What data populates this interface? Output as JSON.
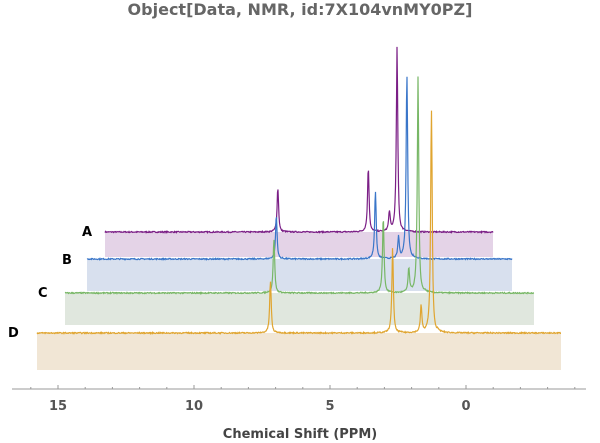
{
  "chart_data": {
    "type": "line",
    "title": "Object[Data, NMR, id:7X104vnMY0PZ]",
    "xlabel": "Chemical Shift  (PPM)",
    "ylabel": "",
    "xlim": [
      15.8,
      -3.5
    ],
    "x_reversed": true,
    "x_ticks": [
      "15",
      "10",
      "5",
      "0"
    ],
    "x_tick_values": [
      15,
      10,
      5,
      0
    ],
    "stacked_3d": true,
    "peak_ppm": [
      7.2,
      2.7,
      1.65,
      1.27
    ],
    "series": [
      {
        "name": "A",
        "color": "#7b1f86",
        "fill": "#e4d3e7",
        "peak_heights": [
          47,
          68,
          21,
          187
        ]
      },
      {
        "name": "B",
        "color": "#3a76c9",
        "fill": "#d8e0ee",
        "peak_heights": [
          46,
          73,
          22,
          198
        ]
      },
      {
        "name": "C",
        "color": "#78b766",
        "fill": "#e0e7de",
        "peak_heights": [
          58,
          80,
          25,
          218
        ]
      },
      {
        "name": "D",
        "color": "#e0a530",
        "fill": "#f1e6d5",
        "peak_heights": [
          56,
          88,
          28,
          241
        ]
      }
    ]
  }
}
